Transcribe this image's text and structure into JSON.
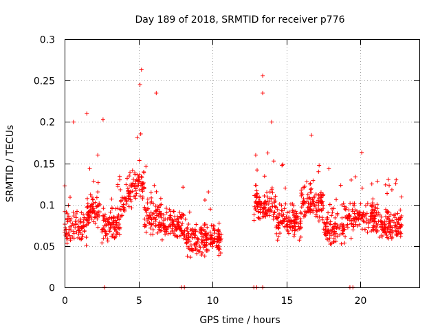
{
  "chart_data": {
    "type": "scatter",
    "title": "Day 189 of 2018, SRMTID for receiver p776",
    "xlabel": "GPS time / hours",
    "ylabel": "SRMTID / TECUs",
    "xlim": [
      0,
      24
    ],
    "ylim": [
      0,
      0.3
    ],
    "xticks": [
      0,
      5,
      10,
      15,
      20
    ],
    "yticks": [
      0,
      0.05,
      0.1,
      0.15,
      0.2,
      0.25,
      0.3
    ],
    "xtick_labels": [
      "0",
      "5",
      "10",
      "15",
      "20"
    ],
    "ytick_labels": [
      "0",
      "0.05",
      "0.1",
      "0.15",
      "0.2",
      "0.25",
      "0.3"
    ],
    "grid": true,
    "marker": "+",
    "series": [
      {
        "name": "SRMTID",
        "color": "#ff0000",
        "segments": [
          {
            "x_start": 0.0,
            "x_end": 10.6,
            "pattern": "dense"
          },
          {
            "x_start": 12.8,
            "x_end": 22.8,
            "pattern": "dense"
          }
        ],
        "notable_points": [
          {
            "x": 5.2,
            "y": 0.263
          },
          {
            "x": 5.1,
            "y": 0.245
          },
          {
            "x": 6.2,
            "y": 0.235
          },
          {
            "x": 13.4,
            "y": 0.256
          },
          {
            "x": 13.4,
            "y": 0.235
          },
          {
            "x": 1.5,
            "y": 0.21
          },
          {
            "x": 14.0,
            "y": 0.2
          },
          {
            "x": 16.7,
            "y": 0.184
          },
          {
            "x": 20.1,
            "y": 0.163
          },
          {
            "x": 0.6,
            "y": 0.2
          },
          {
            "x": 2.6,
            "y": 0.203
          }
        ],
        "zero_points_x": [
          2.7,
          7.9,
          8.1,
          12.8,
          13.0,
          13.4,
          19.3,
          19.5
        ]
      }
    ]
  }
}
